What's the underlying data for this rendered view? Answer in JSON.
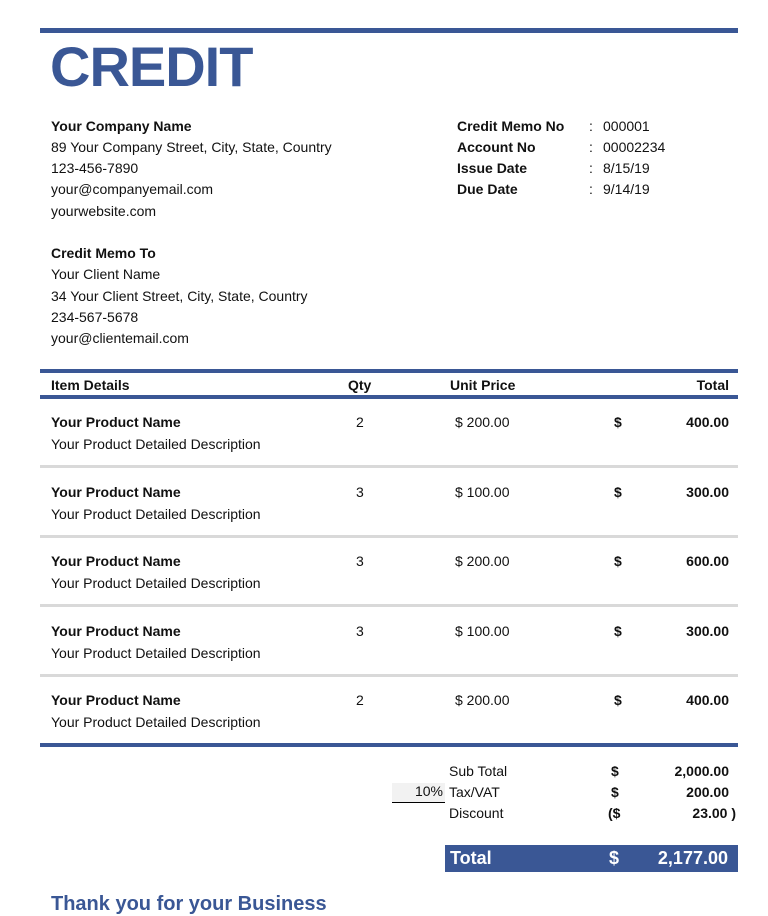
{
  "title": "CREDIT",
  "company": {
    "name": "Your Company Name",
    "address": "89 Your Company Street, City, State, Country",
    "phone": "123-456-7890",
    "email": "your@companyemail.com",
    "website": "yourwebsite.com"
  },
  "meta": [
    {
      "label": "Credit Memo No",
      "value": "000001"
    },
    {
      "label": "Account No",
      "value": "00002234"
    },
    {
      "label": "Issue Date",
      "value": "8/15/19"
    },
    {
      "label": "Due Date",
      "value": "9/14/19"
    }
  ],
  "client": {
    "heading": "Credit Memo To",
    "name": "Your Client Name",
    "address": "34 Your Client Street, City, State, Country",
    "phone": "234-567-5678",
    "email": "your@clientemail.com"
  },
  "table": {
    "headers": {
      "item": "Item Details",
      "qty": "Qty",
      "price": "Unit Price",
      "total": "Total"
    },
    "rows": [
      {
        "name": "Your Product Name",
        "desc": "Your Product Detailed Description",
        "qty": "2",
        "price": "$ 200.00",
        "cur": "$",
        "total": "400.00"
      },
      {
        "name": "Your Product Name",
        "desc": "Your Product Detailed Description",
        "qty": "3",
        "price": "$ 100.00",
        "cur": "$",
        "total": "300.00"
      },
      {
        "name": "Your Product Name",
        "desc": "Your Product Detailed Description",
        "qty": "3",
        "price": "$ 200.00",
        "cur": "$",
        "total": "600.00"
      },
      {
        "name": "Your Product Name",
        "desc": "Your Product Detailed Description",
        "qty": "3",
        "price": "$ 100.00",
        "cur": "$",
        "total": "300.00"
      },
      {
        "name": "Your Product Name",
        "desc": "Your Product Detailed Description",
        "qty": "2",
        "price": "$ 200.00",
        "cur": "$",
        "total": "400.00"
      }
    ]
  },
  "summary": {
    "subtotal_label": "Sub Total",
    "subtotal_cur": "$",
    "subtotal": "2,000.00",
    "tax_rate": "10%",
    "tax_label": "Tax/VAT",
    "tax_cur": "$",
    "tax": "200.00",
    "discount_label": "Discount",
    "discount_cur": "($",
    "discount": "23.00 )",
    "total_label": "Total",
    "total_cur": "$",
    "total": "2,177.00"
  },
  "footer": "Thank you for your Business",
  "colors": {
    "accent": "#3a5795",
    "separator": "#d9d9d9"
  }
}
